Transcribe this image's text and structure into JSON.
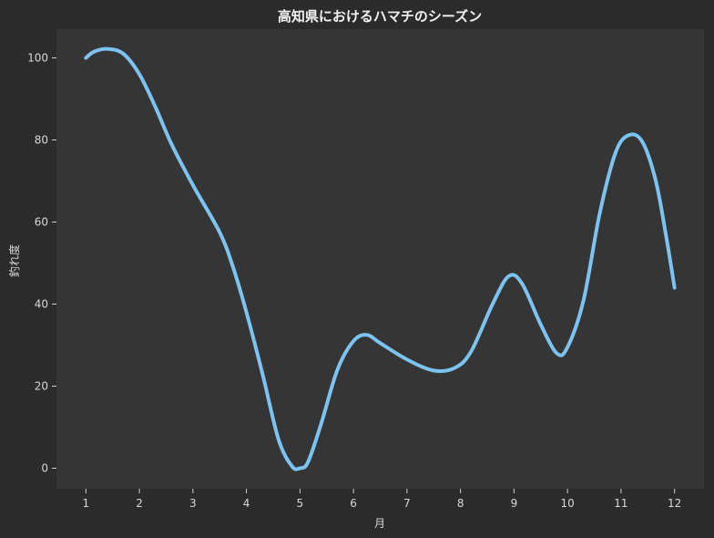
{
  "colors": {
    "figure_bg": "#2b2b2b",
    "plot_bg": "#353535",
    "line": "#7cc3f2",
    "text": "#d8d8d8"
  },
  "chart_data": {
    "type": "line",
    "title": "高知県におけるハマチのシーズン",
    "xlabel": "月",
    "ylabel": "釣れ度",
    "x": [
      1,
      2,
      3,
      4,
      5,
      6,
      7,
      8,
      9,
      10,
      11,
      12
    ],
    "xlim": [
      0.45,
      12.55
    ],
    "ylim": [
      -5,
      107
    ],
    "xticks": [
      1,
      2,
      3,
      4,
      5,
      6,
      7,
      8,
      9,
      10,
      11,
      12
    ],
    "yticks": [
      0,
      20,
      40,
      60,
      80,
      100
    ],
    "grid": false,
    "curve_points": [
      [
        1.0,
        100
      ],
      [
        1.15,
        101.5
      ],
      [
        1.4,
        102.2
      ],
      [
        1.7,
        101
      ],
      [
        2.0,
        96
      ],
      [
        2.3,
        88
      ],
      [
        2.6,
        79
      ],
      [
        3.0,
        69
      ],
      [
        3.5,
        57.5
      ],
      [
        3.75,
        49
      ],
      [
        4.0,
        38
      ],
      [
        4.3,
        23
      ],
      [
        4.6,
        7
      ],
      [
        4.85,
        0.5
      ],
      [
        5.0,
        0
      ],
      [
        5.15,
        1.5
      ],
      [
        5.4,
        11
      ],
      [
        5.7,
        24
      ],
      [
        6.0,
        31
      ],
      [
        6.25,
        32.5
      ],
      [
        6.5,
        30.5
      ],
      [
        7.0,
        26.5
      ],
      [
        7.5,
        23.8
      ],
      [
        7.9,
        24.5
      ],
      [
        8.2,
        28.5
      ],
      [
        8.6,
        40
      ],
      [
        8.9,
        46.8
      ],
      [
        9.15,
        45
      ],
      [
        9.5,
        35
      ],
      [
        9.8,
        28
      ],
      [
        10.0,
        29.5
      ],
      [
        10.3,
        41
      ],
      [
        10.6,
        62
      ],
      [
        10.9,
        77
      ],
      [
        11.15,
        81.2
      ],
      [
        11.4,
        79.5
      ],
      [
        11.65,
        70
      ],
      [
        11.85,
        56
      ],
      [
        12.0,
        44
      ]
    ]
  }
}
